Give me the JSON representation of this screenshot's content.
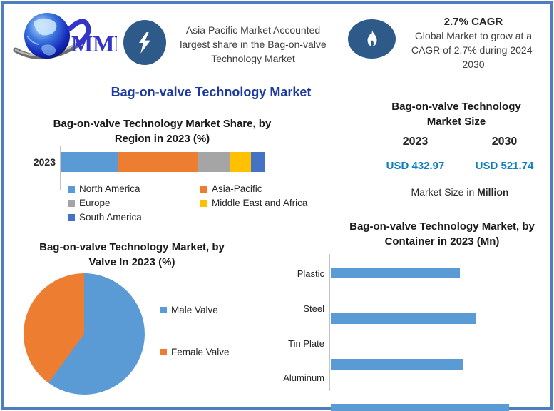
{
  "page": {
    "border_color": "#4d7ebf",
    "background": "#ffffff"
  },
  "header": {
    "logo_text": "MMR",
    "badge1": {
      "icon": "lightning-icon",
      "lines": [
        "Asia Pacific Market Accounted",
        "largest share in the Bag-on-valve",
        "Technology Market"
      ]
    },
    "badge2": {
      "icon": "flame-icon",
      "title": "2.7% CAGR",
      "lines": [
        "Global Market to grow at a",
        "CAGR of 2.7% during 2024-",
        "2030"
      ]
    }
  },
  "main_title": "Bag-on-valve Technology Market",
  "market_size": {
    "title_lines": [
      "Bag-on-valve Technology",
      "Market Size"
    ],
    "years": [
      "2023",
      "2030"
    ],
    "values": [
      "USD 432.97",
      "USD 521.74"
    ],
    "value_color": "#0f7dc2",
    "note_prefix": "Market Size in ",
    "note_bold": "Million"
  },
  "chart_data": [
    {
      "id": "region-share",
      "type": "bar",
      "subtype": "stacked-horizontal",
      "title": "Bag-on-valve Technology Market Share, by Region in 2023 (%)",
      "title_lines": [
        "Bag-on-valve Technology Market Share, by",
        "Region in 2023 (%)"
      ],
      "categories": [
        "2023"
      ],
      "series": [
        {
          "name": "North America",
          "values": [
            28
          ],
          "color": "#5b9bd5"
        },
        {
          "name": "Asia-Pacific",
          "values": [
            39
          ],
          "color": "#ed7d31"
        },
        {
          "name": "Europe",
          "values": [
            16
          ],
          "color": "#a5a5a5"
        },
        {
          "name": "Middle East and Africa",
          "values": [
            10
          ],
          "color": "#ffc000"
        },
        {
          "name": "South America",
          "values": [
            7
          ],
          "color": "#4472c4"
        }
      ],
      "xlim": [
        0,
        100
      ],
      "values_estimated_from_pixels": true,
      "legend_position": "bottom",
      "grid": false
    },
    {
      "id": "valve-split",
      "type": "pie",
      "title": "Bag-on-valve Technology Market, by Valve In 2023 (%)",
      "title_lines": [
        "Bag-on-valve Technology Market, by",
        "Valve In 2023 (%)"
      ],
      "slices": [
        {
          "name": "Male Valve",
          "value": 60,
          "color": "#5b9bd5"
        },
        {
          "name": "Female Valve",
          "value": 40,
          "color": "#ed7d31"
        }
      ],
      "values_estimated_from_pixels": true,
      "legend_position": "right",
      "start_angle_deg": 0,
      "direction": "clockwise"
    },
    {
      "id": "container-2023",
      "type": "bar",
      "subtype": "horizontal",
      "title": "Bag-on-valve Technology Market, by Container in 2023 (Mn)",
      "title_lines": [
        "Bag-on-valve Technology Market, by",
        "Container in 2023 (Mn)"
      ],
      "categories": [
        "Plastic",
        "Steel",
        "Tin Plate",
        "Aluminum"
      ],
      "values_pct_of_max": [
        72.4,
        81.2,
        74.4,
        100
      ],
      "color": "#5b9bd5",
      "axis_value_labels_shown": false,
      "values_estimated_from_pixels": true,
      "grid": false
    }
  ]
}
